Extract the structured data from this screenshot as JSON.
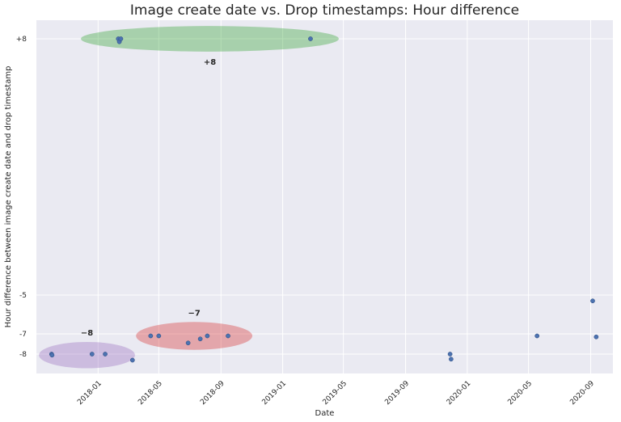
{
  "chart_data": {
    "type": "scatter",
    "title": "Image create date vs. Drop timestamps: Hour difference",
    "xlabel": "Date",
    "ylabel": "Hour difference between image create date and drop timestamp",
    "x_ticks": [
      "2018-01",
      "2018-05",
      "2018-09",
      "2019-01",
      "2019-05",
      "2019-09",
      "2020-01",
      "2020-05",
      "2020-09"
    ],
    "y_ticks": [
      "+8",
      "-5",
      "-7",
      "-8"
    ],
    "grid": true,
    "points": [
      {
        "x": "2017-10-01",
        "y": -8.0
      },
      {
        "x": "2017-10-02",
        "y": -8.05
      },
      {
        "x": "2017-12-20",
        "y": -8.0
      },
      {
        "x": "2018-01-15",
        "y": -8.0
      },
      {
        "x": "2018-02-10",
        "y": 8.0
      },
      {
        "x": "2018-02-12",
        "y": 7.85
      },
      {
        "x": "2018-02-15",
        "y": 8.0
      },
      {
        "x": "2018-03-10",
        "y": -8.3
      },
      {
        "x": "2018-04-15",
        "y": -7.1
      },
      {
        "x": "2018-05-01",
        "y": -7.1
      },
      {
        "x": "2018-06-28",
        "y": -7.45
      },
      {
        "x": "2018-07-22",
        "y": -7.25
      },
      {
        "x": "2018-08-05",
        "y": -7.1
      },
      {
        "x": "2018-09-15",
        "y": -7.1
      },
      {
        "x": "2019-02-25",
        "y": 8.0
      },
      {
        "x": "2019-11-28",
        "y": -8.0
      },
      {
        "x": "2019-11-30",
        "y": -8.25
      },
      {
        "x": "2020-05-18",
        "y": -7.1
      },
      {
        "x": "2020-09-05",
        "y": -5.3
      },
      {
        "x": "2020-09-12",
        "y": -7.15
      }
    ],
    "regions": [
      {
        "label": "+8",
        "color": "#2ca02c",
        "cx": "2018-08-10",
        "cy": 8.0,
        "rx_days": 255,
        "ry": 0.65
      },
      {
        "label": "−7",
        "color": "#d62728",
        "cx": "2018-07-10",
        "cy": -7.1,
        "rx_days": 115,
        "ry": 0.7
      },
      {
        "label": "−8",
        "color": "#9467bd",
        "cx": "2017-12-10",
        "cy": -8.05,
        "rx_days": 95,
        "ry": 0.65
      }
    ],
    "style": {
      "plot_bg": "#eaeaf2",
      "grid_color": "#ffffff",
      "point_color": "#4c72b0",
      "point_edge": "#2b4a7e"
    }
  }
}
